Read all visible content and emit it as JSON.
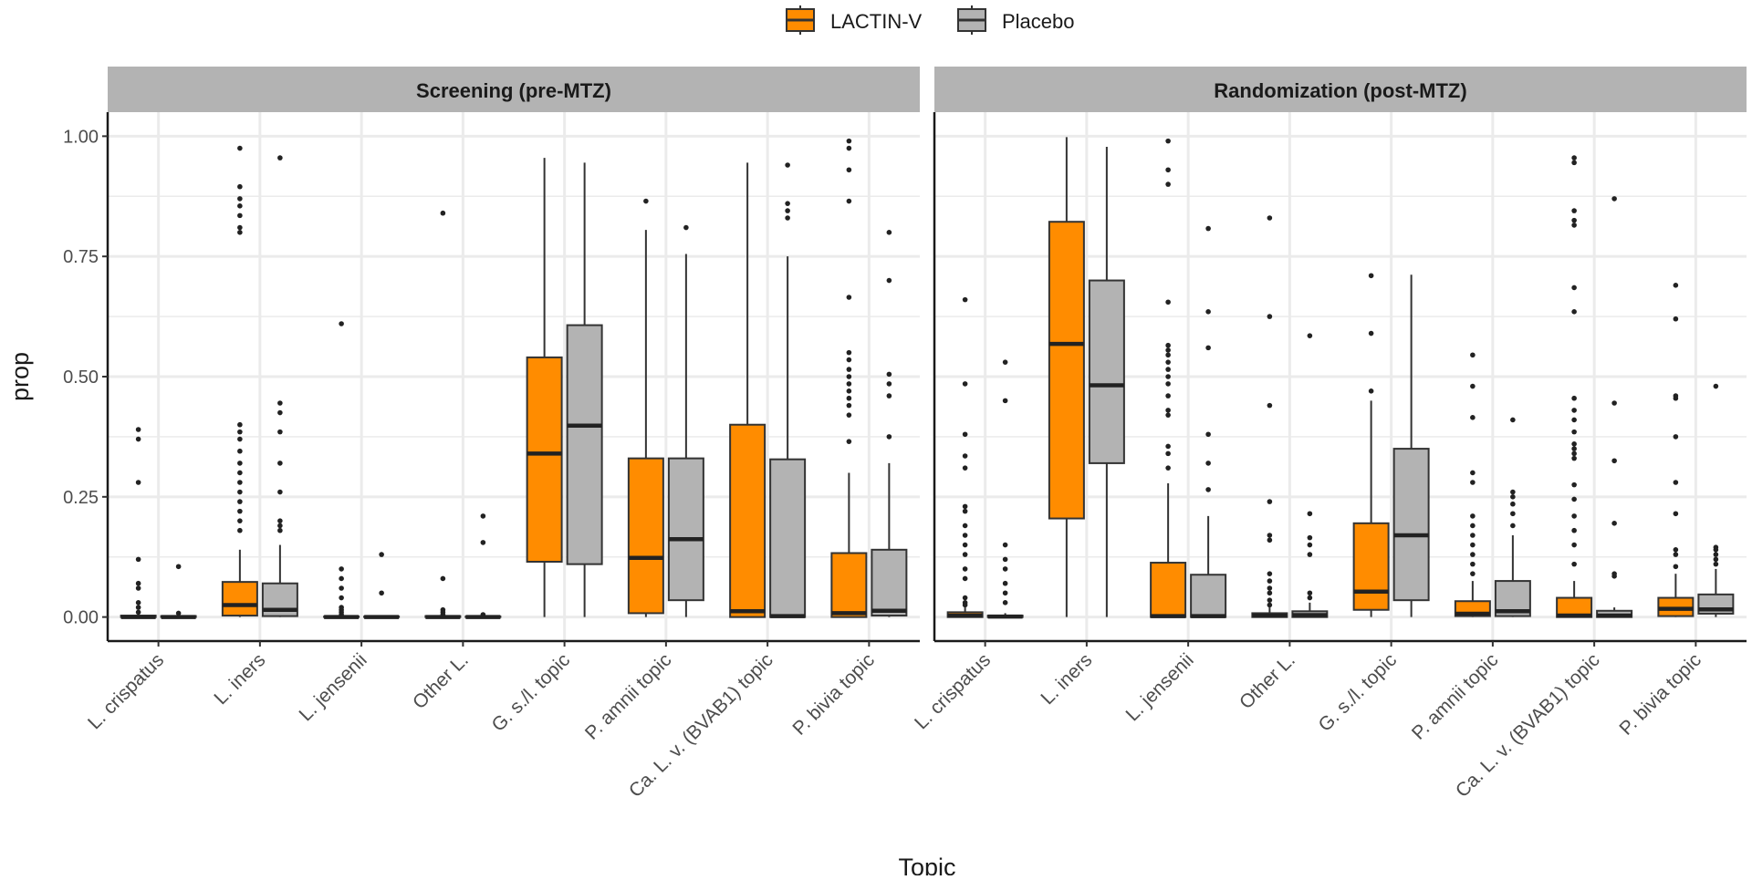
{
  "chart_data": {
    "type": "boxplot",
    "xlabel": "Topic",
    "ylabel": "prop",
    "ylim": [
      -0.05,
      1.05
    ],
    "yticks": [
      0,
      0.25,
      0.5,
      0.75,
      1.0
    ],
    "ytick_labels": [
      "0.00",
      "0.25",
      "0.50",
      "0.75",
      "1.00"
    ],
    "grid": true,
    "legend": {
      "placement": "top-center",
      "entries": [
        "LACTIN-V",
        "Placebo"
      ]
    },
    "series_colors": {
      "LACTIN-V": "#FF8C00",
      "Placebo": "#B3B3B3"
    },
    "categories": [
      "L. crispatus",
      "L. iners",
      "L. jensenii",
      "Other L.",
      "G. s./l. topic",
      "P. amnii topic",
      "Ca. L. v. (BVAB1) topic",
      "P. bivia topic"
    ],
    "panels": [
      {
        "title": "Screening (pre-MTZ)",
        "series": [
          {
            "name": "LACTIN-V",
            "boxes": [
              {
                "min": 0,
                "q1": 0,
                "median": 0,
                "q3": 0.003,
                "max": 0.008,
                "outliers": [
                  0.39,
                  0.37,
                  0.28,
                  0.12,
                  0.07,
                  0.06,
                  0.03,
                  0.02,
                  0.01
                ]
              },
              {
                "min": 0,
                "q1": 0.003,
                "median": 0.025,
                "q3": 0.073,
                "max": 0.14,
                "outliers": [
                  0.975,
                  0.895,
                  0.87,
                  0.855,
                  0.835,
                  0.81,
                  0.8,
                  0.4,
                  0.385,
                  0.37,
                  0.345,
                  0.32,
                  0.3,
                  0.28,
                  0.26,
                  0.24,
                  0.22,
                  0.2,
                  0.18
                ]
              },
              {
                "min": 0,
                "q1": 0,
                "median": 0,
                "q3": 0.001,
                "max": 0.003,
                "outliers": [
                  0.61,
                  0.1,
                  0.08,
                  0.06,
                  0.04,
                  0.02,
                  0.015,
                  0.01,
                  0.005
                ]
              },
              {
                "min": 0,
                "q1": 0,
                "median": 0,
                "q3": 0.002,
                "max": 0.004,
                "outliers": [
                  0.84,
                  0.08,
                  0.015,
                  0.01,
                  0.005
                ]
              },
              {
                "min": 0,
                "q1": 0.115,
                "median": 0.34,
                "q3": 0.54,
                "max": 0.955,
                "outliers": []
              },
              {
                "min": 0,
                "q1": 0.008,
                "median": 0.123,
                "q3": 0.33,
                "max": 0.805,
                "outliers": [
                  0.865
                ]
              },
              {
                "min": 0,
                "q1": 0,
                "median": 0.012,
                "q3": 0.4,
                "max": 0.945,
                "outliers": []
              },
              {
                "min": 0,
                "q1": 0,
                "median": 0.008,
                "q3": 0.133,
                "max": 0.3,
                "outliers": [
                  0.99,
                  0.975,
                  0.93,
                  0.865,
                  0.665,
                  0.55,
                  0.535,
                  0.515,
                  0.5,
                  0.485,
                  0.47,
                  0.455,
                  0.44,
                  0.42,
                  0.365
                ]
              }
            ]
          },
          {
            "name": "Placebo",
            "boxes": [
              {
                "min": 0,
                "q1": 0,
                "median": 0,
                "q3": 0.002,
                "max": 0.006,
                "outliers": [
                  0.105,
                  0.008
                ]
              },
              {
                "min": 0,
                "q1": 0.002,
                "median": 0.015,
                "q3": 0.07,
                "max": 0.15,
                "outliers": [
                  0.955,
                  0.445,
                  0.425,
                  0.385,
                  0.32,
                  0.26,
                  0.2,
                  0.19,
                  0.18
                ]
              },
              {
                "min": 0,
                "q1": 0,
                "median": 0,
                "q3": 0.001,
                "max": 0.002,
                "outliers": [
                  0.13,
                  0.05
                ]
              },
              {
                "min": 0,
                "q1": 0,
                "median": 0,
                "q3": 0.001,
                "max": 0.003,
                "outliers": [
                  0.21,
                  0.155,
                  0.005
                ]
              },
              {
                "min": 0,
                "q1": 0.11,
                "median": 0.398,
                "q3": 0.607,
                "max": 0.945,
                "outliers": []
              },
              {
                "min": 0,
                "q1": 0.035,
                "median": 0.162,
                "q3": 0.33,
                "max": 0.755,
                "outliers": [
                  0.81
                ]
              },
              {
                "min": 0,
                "q1": 0,
                "median": 0.002,
                "q3": 0.328,
                "max": 0.75,
                "outliers": [
                  0.94,
                  0.86,
                  0.845,
                  0.83
                ]
              },
              {
                "min": 0,
                "q1": 0.003,
                "median": 0.013,
                "q3": 0.14,
                "max": 0.32,
                "outliers": [
                  0.8,
                  0.7,
                  0.505,
                  0.485,
                  0.46,
                  0.375
                ]
              }
            ]
          }
        ]
      },
      {
        "title": "Randomization (post-MTZ)",
        "series": [
          {
            "name": "LACTIN-V",
            "boxes": [
              {
                "min": 0,
                "q1": 0,
                "median": 0.003,
                "q3": 0.01,
                "max": 0.02,
                "outliers": [
                  0.66,
                  0.485,
                  0.38,
                  0.335,
                  0.31,
                  0.23,
                  0.22,
                  0.19,
                  0.17,
                  0.15,
                  0.13,
                  0.1,
                  0.08,
                  0.04,
                  0.03,
                  0.025
                ]
              },
              {
                "min": 0,
                "q1": 0.205,
                "median": 0.568,
                "q3": 0.822,
                "max": 0.998,
                "outliers": []
              },
              {
                "min": 0,
                "q1": 0,
                "median": 0.002,
                "q3": 0.113,
                "max": 0.278,
                "outliers": [
                  0.99,
                  0.93,
                  0.9,
                  0.655,
                  0.565,
                  0.555,
                  0.545,
                  0.53,
                  0.515,
                  0.5,
                  0.485,
                  0.46,
                  0.43,
                  0.42,
                  0.355,
                  0.34,
                  0.31
                ]
              },
              {
                "min": 0,
                "q1": 0,
                "median": 0.003,
                "q3": 0.008,
                "max": 0.02,
                "outliers": [
                  0.83,
                  0.625,
                  0.44,
                  0.24,
                  0.17,
                  0.16,
                  0.09,
                  0.075,
                  0.06,
                  0.05,
                  0.035,
                  0.025
                ]
              },
              {
                "min": 0,
                "q1": 0.015,
                "median": 0.053,
                "q3": 0.195,
                "max": 0.45,
                "outliers": [
                  0.71,
                  0.59,
                  0.47
                ]
              },
              {
                "min": 0,
                "q1": 0.002,
                "median": 0.007,
                "q3": 0.033,
                "max": 0.075,
                "outliers": [
                  0.545,
                  0.48,
                  0.415,
                  0.3,
                  0.28,
                  0.21,
                  0.19,
                  0.17,
                  0.15,
                  0.13,
                  0.11,
                  0.09
                ]
              },
              {
                "min": 0,
                "q1": 0,
                "median": 0.003,
                "q3": 0.04,
                "max": 0.075,
                "outliers": [
                  0.955,
                  0.945,
                  0.845,
                  0.825,
                  0.815,
                  0.685,
                  0.635,
                  0.455,
                  0.43,
                  0.41,
                  0.385,
                  0.36,
                  0.35,
                  0.34,
                  0.33,
                  0.275,
                  0.245,
                  0.21,
                  0.18,
                  0.15,
                  0.11
                ]
              },
              {
                "min": 0,
                "q1": 0.002,
                "median": 0.017,
                "q3": 0.04,
                "max": 0.09,
                "outliers": [
                  0.69,
                  0.62,
                  0.46,
                  0.455,
                  0.375,
                  0.28,
                  0.215,
                  0.14,
                  0.13,
                  0.105
                ]
              }
            ]
          },
          {
            "name": "Placebo",
            "boxes": [
              {
                "min": 0,
                "q1": 0,
                "median": 0.001,
                "q3": 0.003,
                "max": 0.008,
                "outliers": [
                  0.53,
                  0.45,
                  0.15,
                  0.12,
                  0.1,
                  0.07,
                  0.05,
                  0.03
                ]
              },
              {
                "min": 0,
                "q1": 0.32,
                "median": 0.482,
                "q3": 0.7,
                "max": 0.978,
                "outliers": []
              },
              {
                "min": 0,
                "q1": 0,
                "median": 0.002,
                "q3": 0.088,
                "max": 0.21,
                "outliers": [
                  0.808,
                  0.635,
                  0.56,
                  0.38,
                  0.32,
                  0.265
                ]
              },
              {
                "min": 0,
                "q1": 0,
                "median": 0.004,
                "q3": 0.012,
                "max": 0.03,
                "outliers": [
                  0.585,
                  0.215,
                  0.165,
                  0.15,
                  0.13,
                  0.05,
                  0.04
                ]
              },
              {
                "min": 0,
                "q1": 0.035,
                "median": 0.17,
                "q3": 0.35,
                "max": 0.712,
                "outliers": []
              },
              {
                "min": 0,
                "q1": 0.002,
                "median": 0.012,
                "q3": 0.075,
                "max": 0.17,
                "outliers": [
                  0.41,
                  0.26,
                  0.25,
                  0.235,
                  0.215,
                  0.19
                ]
              },
              {
                "min": 0,
                "q1": 0,
                "median": 0.003,
                "q3": 0.013,
                "max": 0.02,
                "outliers": [
                  0.87,
                  0.445,
                  0.325,
                  0.195,
                  0.09,
                  0.085
                ]
              },
              {
                "min": 0,
                "q1": 0.007,
                "median": 0.016,
                "q3": 0.047,
                "max": 0.1,
                "outliers": [
                  0.48,
                  0.145,
                  0.14,
                  0.13,
                  0.12,
                  0.11
                ]
              }
            ]
          }
        ]
      }
    ]
  }
}
